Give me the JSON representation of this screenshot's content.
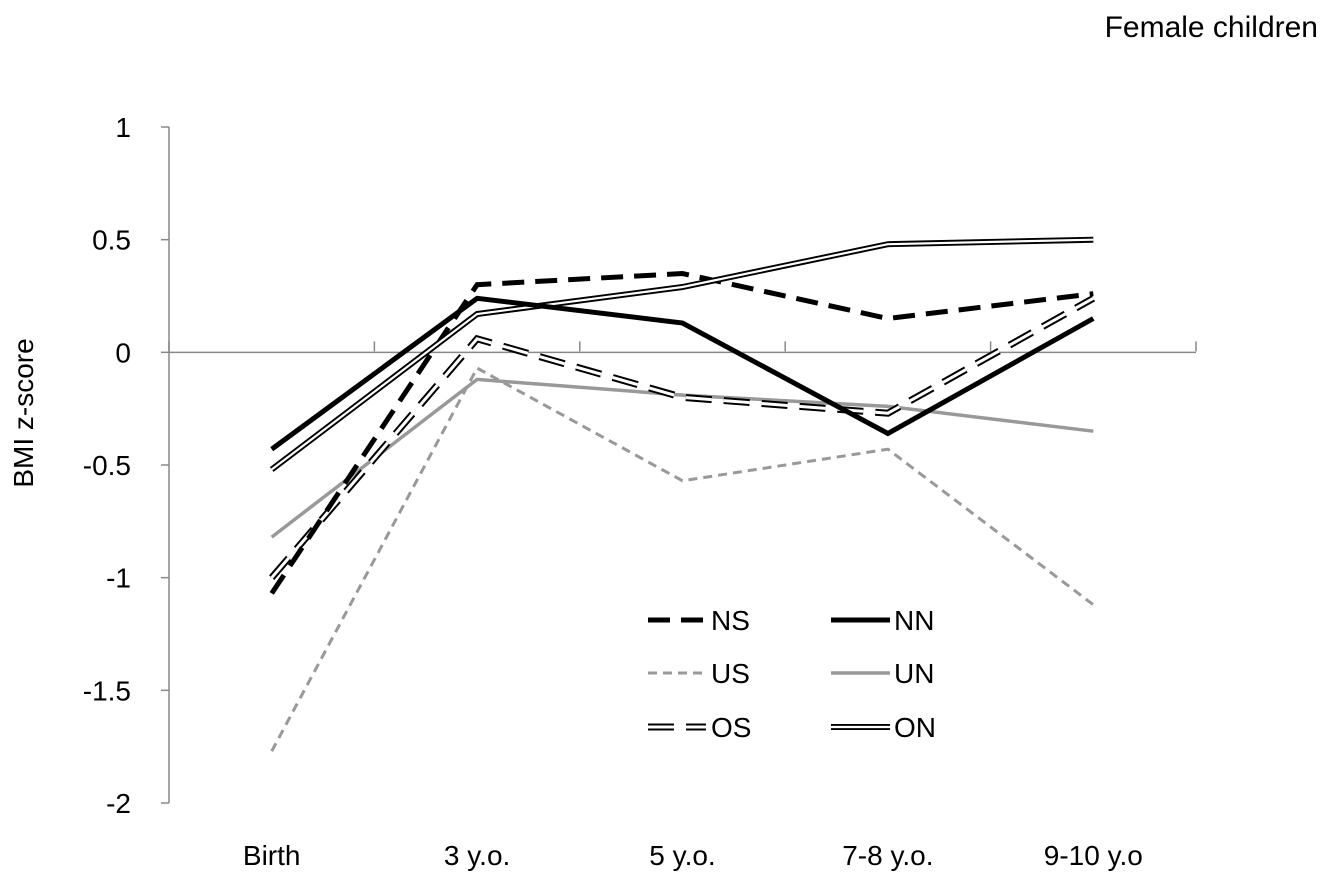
{
  "chart_data": {
    "type": "line",
    "title": "Female children",
    "ylabel": "BMI z-score",
    "xlabel": "",
    "categories": [
      "Birth",
      "3 y.o.",
      "5 y.o.",
      "7-8 y.o.",
      "9-10 y.o"
    ],
    "ylim": [
      -2,
      1
    ],
    "yticks": [
      1,
      0.5,
      0,
      -0.5,
      -1,
      -1.5,
      -2
    ],
    "ytick_labels": [
      "1",
      "0.5",
      "0",
      "-0.5",
      "-1",
      "-1.5",
      "-2"
    ],
    "grid": false,
    "legend_position": "bottom-center",
    "series": [
      {
        "name": "NS",
        "values": [
          -1.07,
          0.3,
          0.35,
          0.15,
          0.26
        ],
        "style": "dashed-thick",
        "color": "#000000"
      },
      {
        "name": "US",
        "values": [
          -1.77,
          -0.07,
          -0.57,
          -0.43,
          -1.12
        ],
        "style": "dashed-thin",
        "color": "#999999"
      },
      {
        "name": "OS",
        "values": [
          -1.0,
          0.06,
          -0.2,
          -0.27,
          0.24
        ],
        "style": "double-dashed",
        "color": "#000000"
      },
      {
        "name": "NN",
        "values": [
          -0.43,
          0.24,
          0.13,
          -0.36,
          0.15
        ],
        "style": "solid-thick",
        "color": "#000000"
      },
      {
        "name": "UN",
        "values": [
          -0.82,
          -0.12,
          -0.19,
          -0.24,
          -0.35
        ],
        "style": "solid-gray",
        "color": "#999999"
      },
      {
        "name": "ON",
        "values": [
          -0.52,
          0.17,
          0.29,
          0.48,
          0.5
        ],
        "style": "double-solid",
        "color": "#000000"
      }
    ]
  }
}
